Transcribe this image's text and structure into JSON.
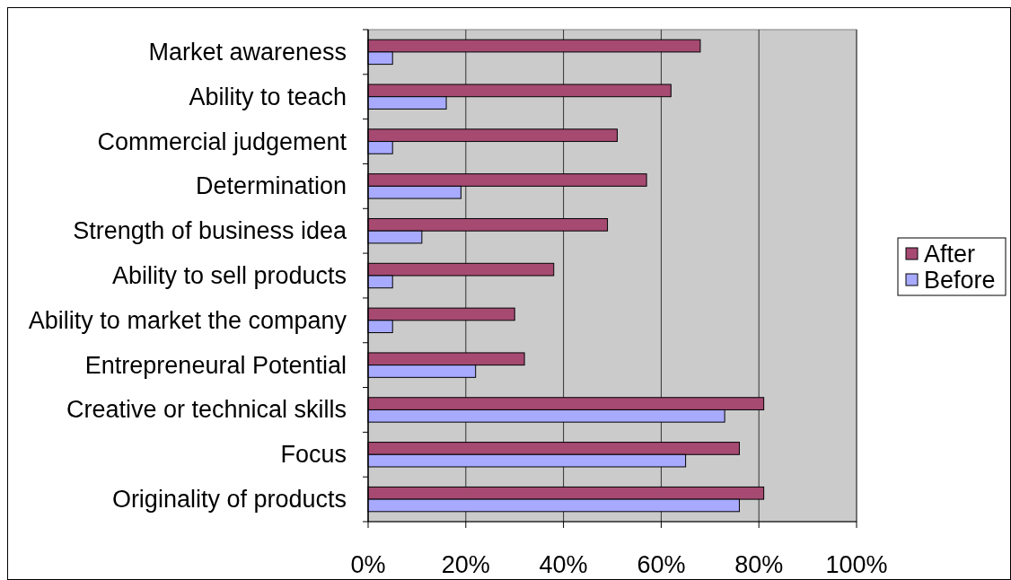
{
  "chart_data": {
    "type": "bar",
    "orientation": "horizontal",
    "categories": [
      "Market awareness",
      "Ability to teach",
      "Commercial judgement",
      "Determination",
      "Strength of business idea",
      "Ability to sell products",
      "Ability to market the company",
      "Entrepreneural Potential",
      "Creative or technical skills",
      "Focus",
      "Originality of products"
    ],
    "series": [
      {
        "name": "After",
        "color": "#a64a72",
        "values": [
          68,
          62,
          51,
          57,
          49,
          38,
          30,
          32,
          81,
          76,
          81
        ]
      },
      {
        "name": "Before",
        "color": "#a8aaff",
        "values": [
          5,
          16,
          5,
          19,
          11,
          5,
          5,
          22,
          73,
          65,
          76
        ]
      }
    ],
    "xlim": [
      0,
      100
    ],
    "xticks": [
      {
        "value": 0,
        "label": "0%"
      },
      {
        "value": 20,
        "label": "20%"
      },
      {
        "value": 40,
        "label": "40%"
      },
      {
        "value": 60,
        "label": "60%"
      },
      {
        "value": 80,
        "label": "80%"
      },
      {
        "value": 100,
        "label": "100%"
      }
    ],
    "grid": "x",
    "legend": "right"
  }
}
